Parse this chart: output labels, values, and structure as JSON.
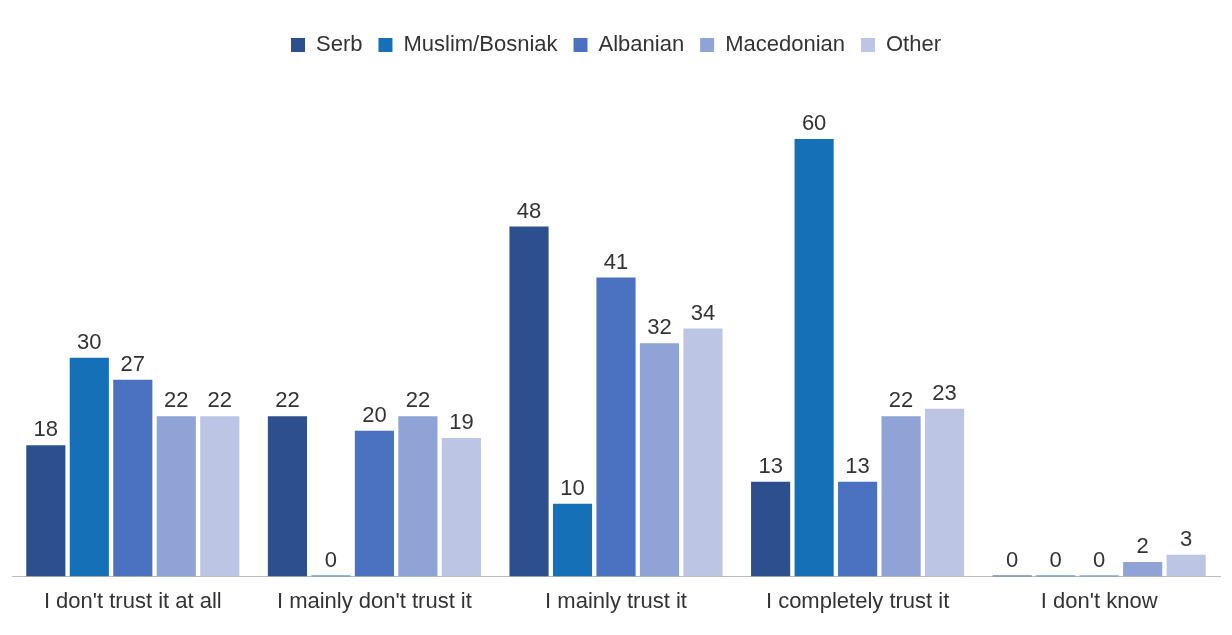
{
  "chart_data": {
    "type": "bar",
    "categories": [
      "I don't trust it at all",
      "I mainly don't trust it",
      "I mainly trust it",
      "I completely trust it",
      "I don't know"
    ],
    "series": [
      {
        "name": "Serb",
        "color": "#2d4f8e",
        "values": [
          18,
          22,
          48,
          13,
          0
        ]
      },
      {
        "name": "Muslim/Bosniak",
        "color": "#1570b8",
        "values": [
          30,
          0,
          10,
          60,
          0
        ]
      },
      {
        "name": "Albanian",
        "color": "#4a72c0",
        "values": [
          27,
          20,
          41,
          13,
          0
        ]
      },
      {
        "name": "Macedonian",
        "color": "#8fa3d6",
        "values": [
          22,
          22,
          32,
          22,
          2
        ]
      },
      {
        "name": "Other",
        "color": "#bcc6e4",
        "values": [
          22,
          19,
          34,
          23,
          3
        ]
      }
    ],
    "data_labels": true,
    "legend": "top",
    "grid": false
  }
}
